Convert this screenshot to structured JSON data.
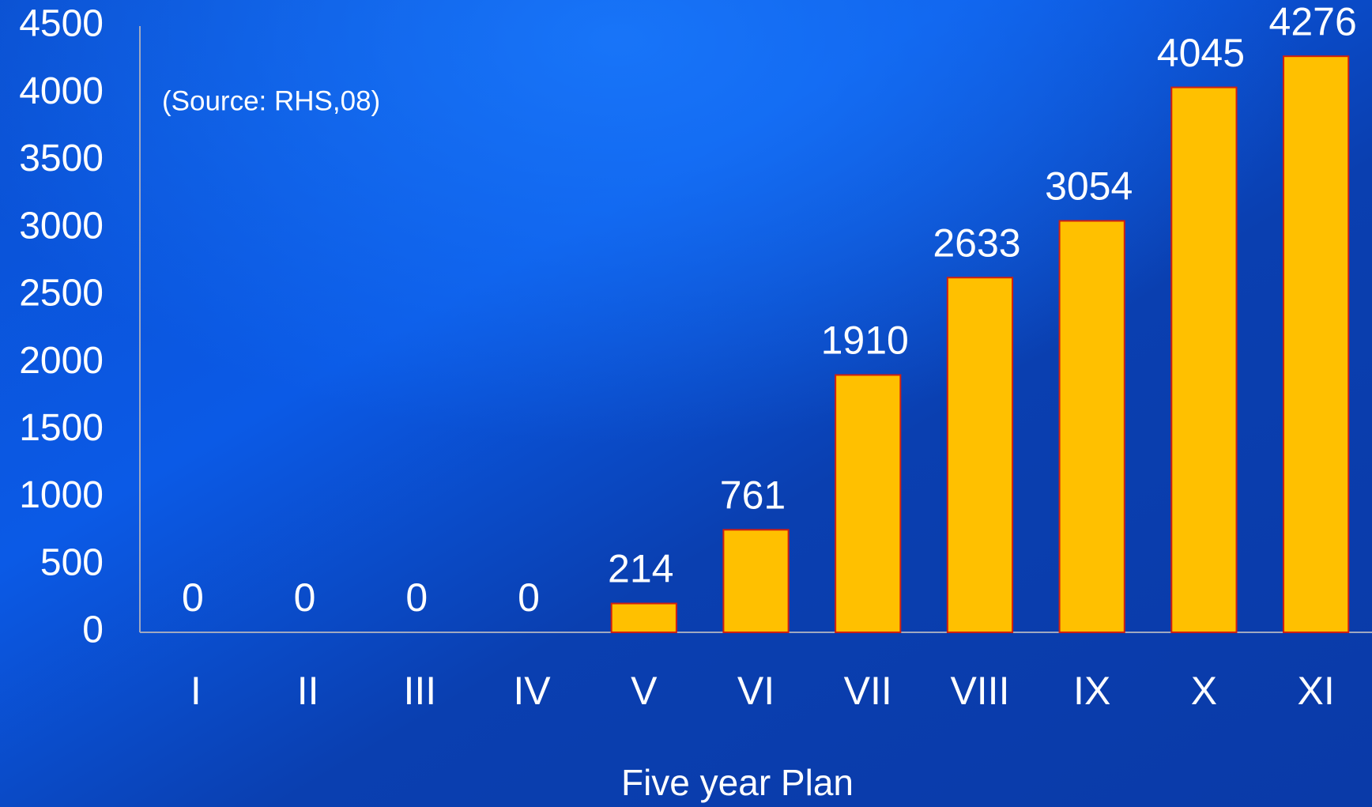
{
  "chart_data": {
    "type": "bar",
    "annotation": "(Source: RHS,08)",
    "x_label": "Five year Plan",
    "categories": [
      "I",
      "II",
      "III",
      "IV",
      "V",
      "VI",
      "VII",
      "VIII",
      "IX",
      "X",
      "XI"
    ],
    "values": [
      0,
      0,
      0,
      0,
      214,
      761,
      1910,
      2633,
      3054,
      4045,
      4276
    ],
    "color": "#ffc000",
    "ylim": [
      0,
      4500
    ],
    "yticks": [
      0,
      500,
      1000,
      1500,
      2000,
      2500,
      3000,
      3500,
      4000,
      4500
    ],
    "grid": false
  }
}
